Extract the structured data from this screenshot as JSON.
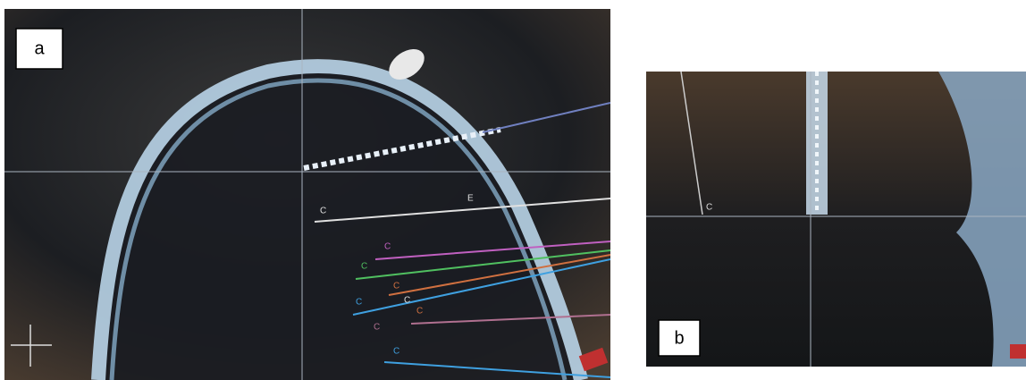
{
  "panels": [
    {
      "label": "a",
      "trajectory_labels": [
        "C",
        "E",
        "C",
        "C",
        "C",
        "C",
        "C",
        "C",
        "C",
        "C"
      ]
    },
    {
      "label": "b",
      "trajectory_labels": [
        "C"
      ]
    }
  ]
}
